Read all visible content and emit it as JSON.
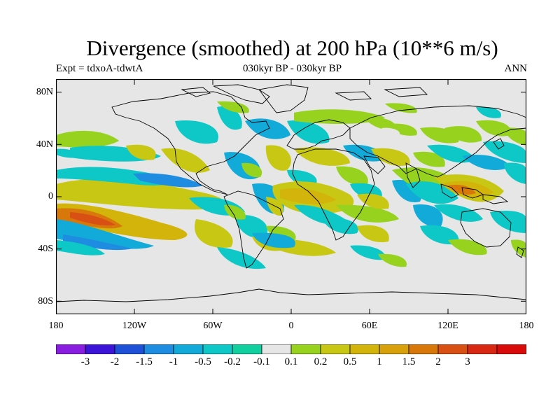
{
  "figure": {
    "title": "Divergence (smoothed) at 200 hPa (10**6 m/s)",
    "left_subtitle": "Expt = tdxoA-tdwtA",
    "center_subtitle": "030kyr BP - 030kyr BP",
    "right_subtitle": "ANN"
  },
  "axes": {
    "latitude_labels": [
      "80N",
      "40N",
      "0",
      "40S",
      "80S"
    ],
    "longitude_labels": [
      "180",
      "120W",
      "60W",
      "0",
      "60E",
      "120E",
      "180"
    ]
  },
  "colorbar": {
    "colors": [
      "#8a1ee0",
      "#3c14d8",
      "#1e50d8",
      "#1e8ce0",
      "#12aad8",
      "#0ec8c8",
      "#12cfa0",
      "#e6e6e6",
      "#96d21e",
      "#c8c814",
      "#d2b40a",
      "#d8a00a",
      "#d8780a",
      "#d85014",
      "#d82814",
      "#d80a0a"
    ],
    "labels": [
      "-3",
      "-2",
      "-1.5",
      "-1",
      "-0.5",
      "-0.2",
      "-0.1",
      "0.1",
      "0.2",
      "0.5",
      "1",
      "1.5",
      "2",
      "3"
    ]
  },
  "map": {
    "background_color": "#e6e6e6",
    "positive_colors": [
      "#96d21e",
      "#c8c814",
      "#d2b40a",
      "#d8780a"
    ],
    "negative_colors": [
      "#0ec8c8",
      "#12aad8",
      "#1e8ce0"
    ]
  }
}
